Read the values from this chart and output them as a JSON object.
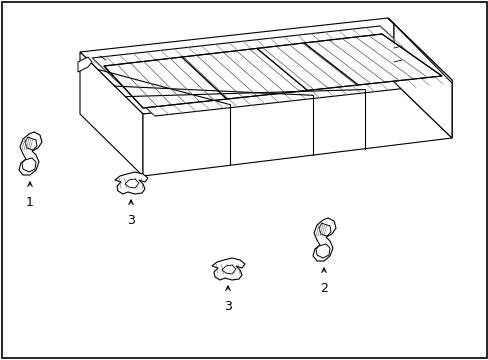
{
  "background_color": "#ffffff",
  "line_color": "#000000",
  "line_width": 0.8,
  "fig_width": 4.89,
  "fig_height": 3.6,
  "dpi": 100,
  "label_1": "1",
  "label_2": "2",
  "label_3a": "3",
  "label_3b": "3",
  "label_fontsize": 9,
  "border_color": "#000000"
}
